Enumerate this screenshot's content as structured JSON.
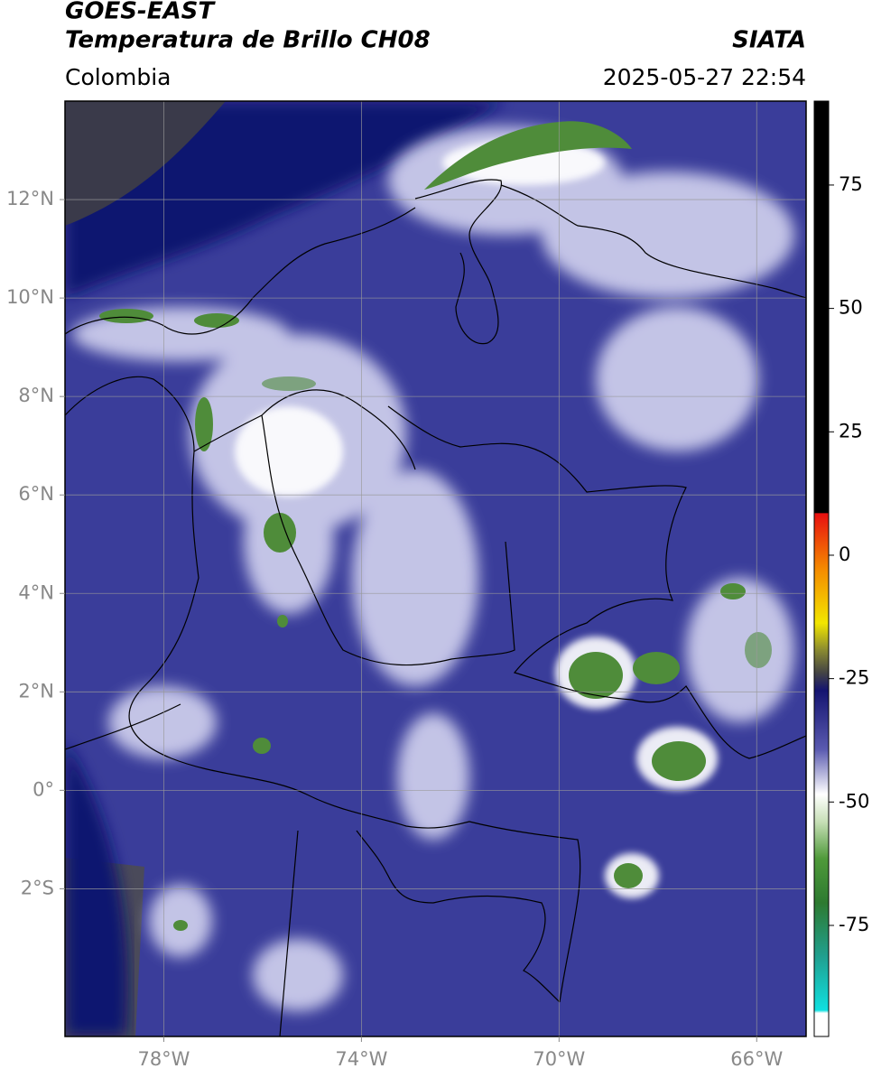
{
  "chart_data": {
    "type": "map",
    "title": "GOES-EAST",
    "subtitle": "Temperatura de Brillo CH08",
    "source": "SIATA",
    "region": "Colombia",
    "timestamp": "2025-05-27 22:54",
    "xlim": [
      -80,
      -65
    ],
    "ylim": [
      -5,
      14
    ],
    "xticks": [
      {
        "value": -78,
        "label": "78°W"
      },
      {
        "value": -74,
        "label": "74°W"
      },
      {
        "value": -70,
        "label": "70°W"
      },
      {
        "value": -66,
        "label": "66°W"
      }
    ],
    "yticks": [
      {
        "value": 12,
        "label": "12°N"
      },
      {
        "value": 10,
        "label": "10°N"
      },
      {
        "value": 8,
        "label": "8°N"
      },
      {
        "value": 6,
        "label": "6°N"
      },
      {
        "value": 4,
        "label": "4°N"
      },
      {
        "value": 2,
        "label": "2°N"
      },
      {
        "value": 0,
        "label": "0°"
      },
      {
        "value": -2,
        "label": "2°S"
      }
    ],
    "grid": true,
    "colorbar": {
      "clim": [
        -97.5,
        92
      ],
      "ticks": [
        75,
        50,
        25,
        0,
        -25,
        -50,
        -75
      ]
    }
  }
}
